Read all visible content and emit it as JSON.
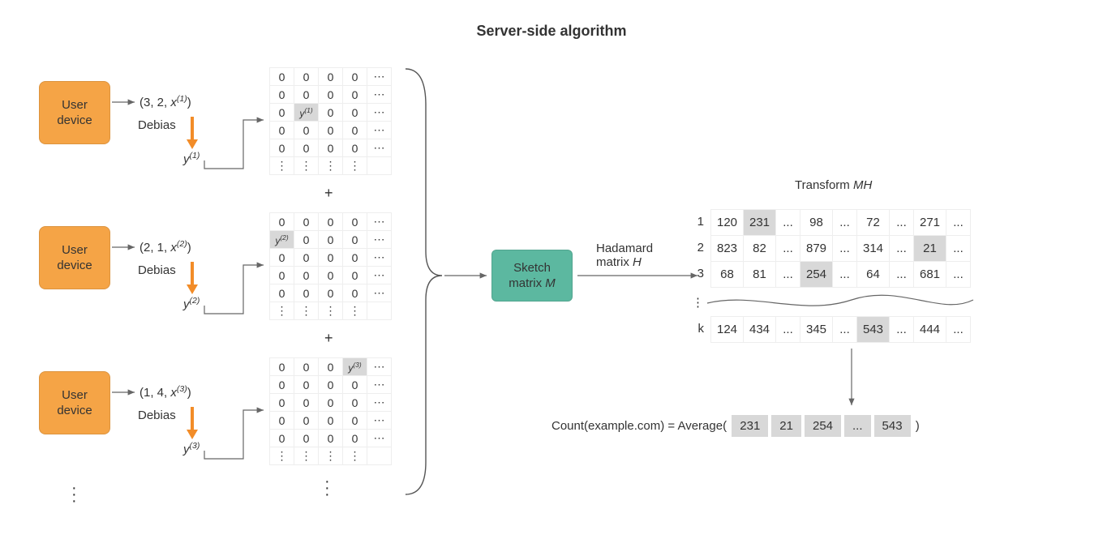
{
  "title": "Server-side algorithm",
  "colors": {
    "device_bg": "#f5a446",
    "sketch_bg": "#5cb8a0",
    "arrow_orange": "#f28c28",
    "text": "#333333",
    "cell_border": "#eeeeee",
    "highlight_bg": "#d8d8d8",
    "arrow_gray": "#666666"
  },
  "devices": [
    {
      "label": "User\ndevice",
      "tuple_prefix": "(3, 2, ",
      "tuple_var": "x",
      "sup": "(1)",
      "debias_label": "Debias",
      "y_var": "y",
      "y_sup": "(1)",
      "hi_row": 2,
      "hi_col": 1
    },
    {
      "label": "User\ndevice",
      "tuple_prefix": "(2, 1, ",
      "tuple_var": "x",
      "sup": "(2)",
      "debias_label": "Debias",
      "y_var": "y",
      "y_sup": "(2)",
      "hi_row": 1,
      "hi_col": 0
    },
    {
      "label": "User\ndevice",
      "tuple_prefix": "(1, 4, ",
      "tuple_var": "x",
      "sup": "(3)",
      "debias_label": "Debias",
      "y_var": "y",
      "y_sup": "(3)",
      "hi_row": 0,
      "hi_col": 3
    }
  ],
  "matrix": {
    "rows": 6,
    "cols": 5
  },
  "plus_symbol": "+",
  "sketch_label": "Sketch\nmatrix M",
  "hadamard_label": "Hadamard\nmatrix H",
  "transform_label": "Transform MH",
  "mh_rows": [
    {
      "label": "1",
      "cells": [
        "120",
        "231",
        "...",
        "98",
        "...",
        "72",
        "...",
        "271",
        "..."
      ],
      "hi_index": 1
    },
    {
      "label": "2",
      "cells": [
        "823",
        "82",
        "...",
        "879",
        "...",
        "314",
        "...",
        "21",
        "..."
      ],
      "hi_index": 7
    },
    {
      "label": "3",
      "cells": [
        "68",
        "81",
        "...",
        "254",
        "...",
        "64",
        "...",
        "681",
        "..."
      ],
      "hi_index": 3
    },
    {
      "label": "k",
      "cells": [
        "124",
        "434",
        "...",
        "345",
        "...",
        "543",
        "...",
        "444",
        "..."
      ],
      "hi_index": 5
    }
  ],
  "mh_ellipsis_label": "⋮",
  "count_label": "Count(example.com) = Average(",
  "count_values": [
    "231",
    "21",
    "254",
    "...",
    "543"
  ],
  "count_close": ")"
}
